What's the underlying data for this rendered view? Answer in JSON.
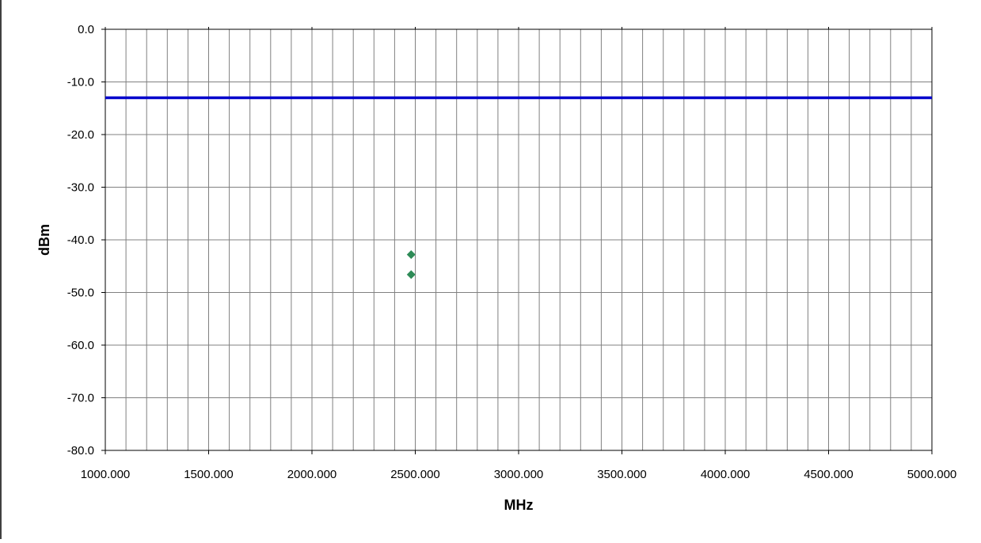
{
  "chart_data": {
    "type": "scatter",
    "xlabel": "MHz",
    "ylabel": "dBm",
    "xlim": [
      1000,
      5000
    ],
    "ylim": [
      -80,
      0
    ],
    "x_major_ticks": [
      1000,
      1500,
      2000,
      2500,
      3000,
      3500,
      4000,
      4500,
      5000
    ],
    "x_tick_labels": [
      "1000.000",
      "1500.000",
      "2000.000",
      "2500.000",
      "3000.000",
      "3500.000",
      "4000.000",
      "4500.000",
      "5000.000"
    ],
    "x_minor_step": 100,
    "y_major_ticks": [
      0,
      -10,
      -20,
      -30,
      -40,
      -50,
      -60,
      -70,
      -80
    ],
    "y_tick_labels": [
      "0.0",
      "-10.0",
      "-20.0",
      "-30.0",
      "-40.0",
      "-50.0",
      "-60.0",
      "-70.0",
      "-80.0"
    ],
    "grid": true,
    "series": [
      {
        "type": "line",
        "color": "#0000cc",
        "x": [
          1000,
          5000
        ],
        "y": [
          -13,
          -13
        ]
      },
      {
        "type": "scatter",
        "marker": "diamond",
        "color": "#2e8b57",
        "x": [
          2480,
          2480
        ],
        "y": [
          -42.8,
          -46.6
        ]
      }
    ]
  }
}
